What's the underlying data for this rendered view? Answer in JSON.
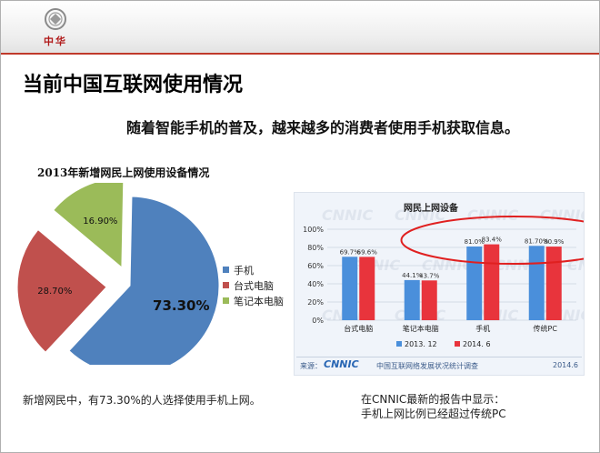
{
  "header": {
    "logo_text": "中华"
  },
  "page_title": "当前中国互联网使用情况",
  "subtitle": "随着智能手机的普及，越来越多的消费者使用手机获取信息。",
  "colors": {
    "pie_blue": "#4f81bd",
    "pie_red": "#c0504d",
    "pie_green": "#9bbb59",
    "bar_blue": "#4a8fdb",
    "bar_red": "#e8343c",
    "highlight_ellipse": "#e02020",
    "accent_rule": "#c0392b"
  },
  "chart_data": [
    {
      "type": "pie",
      "title": "2013年新增网民上网使用设备情况",
      "slices": [
        {
          "name": "手机",
          "value": 73.3,
          "label": "73.30%",
          "color": "#4f81bd"
        },
        {
          "name": "台式电脑",
          "value": 28.7,
          "label": "28.70%",
          "color": "#c0504d"
        },
        {
          "name": "笔记本电脑",
          "value": 16.9,
          "label": "16.90%",
          "color": "#9bbb59"
        }
      ],
      "legend": [
        "手机",
        "台式电脑",
        "笔记本电脑"
      ],
      "legend_position": "right"
    },
    {
      "type": "bar",
      "title": "网民上网设备",
      "categories": [
        "台式电脑",
        "笔记本电脑",
        "手机",
        "传统PC"
      ],
      "series": [
        {
          "name": "2013. 12",
          "values": [
            69.7,
            44.1,
            81.0,
            81.7
          ],
          "labels": [
            "69.7%",
            "44.1%",
            "81.0%",
            "81.70%"
          ]
        },
        {
          "name": "2014. 6",
          "values": [
            69.6,
            43.7,
            83.4,
            80.9
          ],
          "labels": [
            "69.6%",
            "43.7%",
            "83.4%",
            "80.9%"
          ]
        }
      ],
      "yticks": [
        "0%",
        "20%",
        "40%",
        "60%",
        "80%",
        "100%"
      ],
      "ylim": [
        0,
        100
      ],
      "grid": true,
      "legend_position": "bottom",
      "source_prefix": "来源：",
      "source_logo": "CNNIC",
      "source_text": "中国互联网络发展状况统计调查",
      "source_date": "2014.6",
      "watermark": "CNNIC"
    }
  ],
  "left_caption": "新增网民中，有73.30%的人选择使用手机上网。",
  "right_caption": {
    "line1": "在CNNIC最新的报告中显示：",
    "line2": "手机上网比例已经超过传统PC"
  }
}
